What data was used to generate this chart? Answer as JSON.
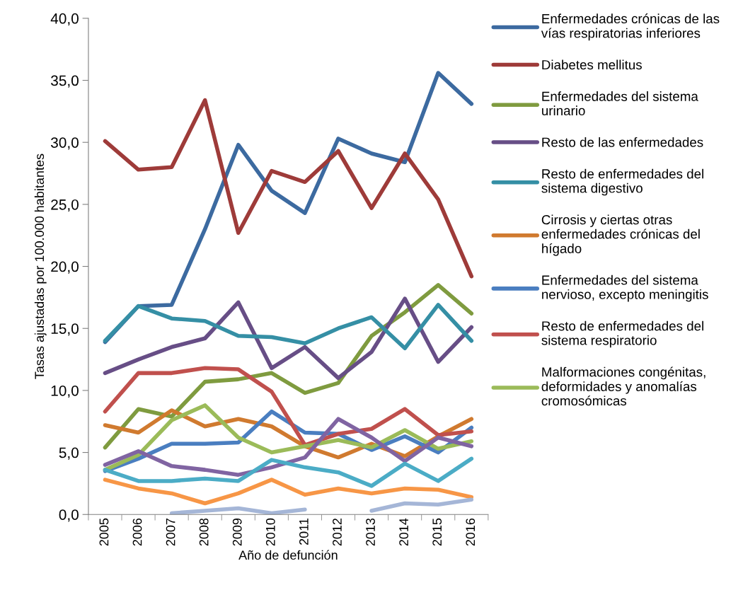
{
  "chart_data": {
    "type": "line",
    "xlabel": "Año de defunción",
    "ylabel": "Tasas ajustadas por 100.000 habitantes",
    "categories": [
      "2005",
      "2006",
      "2007",
      "2008",
      "2009",
      "2010",
      "2011",
      "2012",
      "2013",
      "2014",
      "2015",
      "2016"
    ],
    "ylim": [
      0,
      40
    ],
    "yticks": [
      {
        "value": 0,
        "label": "0,0"
      },
      {
        "value": 5,
        "label": "5,0"
      },
      {
        "value": 10,
        "label": "10,0"
      },
      {
        "value": 15,
        "label": "15,0"
      },
      {
        "value": 20,
        "label": "20,0"
      },
      {
        "value": 25,
        "label": "25,0"
      },
      {
        "value": 30,
        "label": "30,0"
      },
      {
        "value": 35,
        "label": "35,0"
      },
      {
        "value": 40,
        "label": "40,0"
      }
    ],
    "grid": false,
    "legend": "right",
    "marker": "none",
    "line_style": "solid",
    "series": [
      {
        "name": "Enfermedades crónicas de las\nvías respiratorias inferiores",
        "color": "#3c6aa0",
        "values": [
          13.9,
          16.8,
          16.9,
          23.0,
          29.8,
          26.1,
          24.3,
          30.3,
          29.1,
          28.4,
          35.6,
          33.1
        ]
      },
      {
        "name": "Diabetes mellitus",
        "color": "#9e3b39",
        "values": [
          30.1,
          27.8,
          28.0,
          33.4,
          22.7,
          27.7,
          26.8,
          29.3,
          24.7,
          29.1,
          25.4,
          19.2
        ]
      },
      {
        "name": "Enfermedades del sistema\nurinario",
        "color": "#7f9b3f",
        "values": [
          5.4,
          8.5,
          7.9,
          10.7,
          10.9,
          11.4,
          9.8,
          10.6,
          14.4,
          16.3,
          18.5,
          16.2
        ]
      },
      {
        "name": "Resto de las enfermedades",
        "color": "#674e86",
        "values": [
          11.4,
          12.5,
          13.5,
          14.2,
          17.1,
          11.8,
          13.5,
          11.0,
          13.1,
          17.4,
          12.3,
          15.1
        ]
      },
      {
        "name": "Resto de enfermedades del\nsistema digestivo",
        "color": "#358fa5",
        "values": [
          14.0,
          16.8,
          15.8,
          15.6,
          14.4,
          14.3,
          13.8,
          15.0,
          15.9,
          13.4,
          16.9,
          14.0
        ]
      },
      {
        "name": "Cirrosis y ciertas otras\nenfermedades crónicas del\nhígado",
        "color": "#d07a2f",
        "values": [
          7.2,
          6.6,
          8.4,
          7.1,
          7.7,
          7.1,
          5.5,
          4.6,
          5.7,
          4.7,
          6.3,
          7.7
        ]
      },
      {
        "name": "Enfermedades del sistema\nnervioso, excepto meningitis",
        "color": "#4a7ec0",
        "values": [
          3.5,
          4.5,
          5.7,
          5.7,
          5.8,
          8.3,
          6.6,
          6.5,
          5.2,
          6.3,
          5.0,
          7.0
        ]
      },
      {
        "name": "Resto de enfermedades del\nsistema respiratorio",
        "color": "#c0504d",
        "values": [
          8.3,
          11.4,
          11.4,
          11.8,
          11.7,
          9.9,
          5.6,
          6.5,
          6.9,
          8.5,
          6.4,
          6.7
        ]
      },
      {
        "name": "Malformaciones congénitas,\ndeformidades y anomalías\ncromosómicas",
        "color": "#9bbb59",
        "values": [
          3.6,
          4.8,
          7.6,
          8.8,
          6.2,
          5.0,
          5.5,
          6.0,
          5.4,
          6.8,
          5.3,
          5.9
        ]
      },
      {
        "color": "#8064a2",
        "values": [
          4.0,
          5.1,
          3.9,
          3.6,
          3.2,
          3.8,
          4.6,
          7.7,
          6.2,
          4.3,
          6.2,
          5.5
        ]
      },
      {
        "color": "#4bacc6",
        "values": [
          3.6,
          2.7,
          2.7,
          2.9,
          2.7,
          4.4,
          3.8,
          3.4,
          2.3,
          4.1,
          2.7,
          4.5
        ]
      },
      {
        "color": "#f79646",
        "values": [
          2.8,
          2.1,
          1.7,
          0.9,
          1.7,
          2.8,
          1.6,
          2.1,
          1.7,
          2.1,
          2.0,
          1.4
        ]
      },
      {
        "color": "#a5b6d7",
        "values": [
          null,
          null,
          0.1,
          0.3,
          0.5,
          0.1,
          0.4,
          null,
          0.3,
          0.9,
          0.8,
          1.2
        ]
      }
    ]
  }
}
